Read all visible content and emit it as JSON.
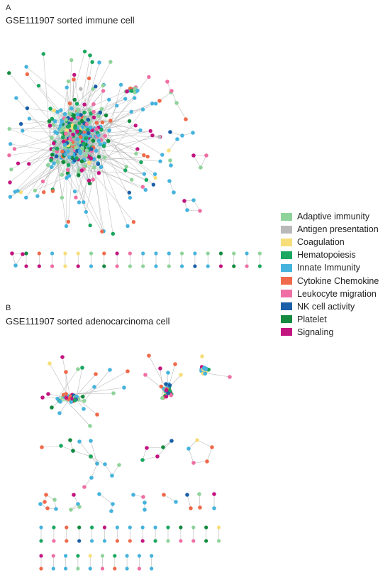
{
  "panels": [
    {
      "letter": "A",
      "title": "GSE111907 sorted immune cell"
    },
    {
      "letter": "B",
      "title": "GSE111907 sorted adenocarcinoma cell"
    }
  ],
  "legend": [
    {
      "label": "Adaptive immunity",
      "color": "#8fd39a"
    },
    {
      "label": "Antigen presentation",
      "color": "#b9b9b9"
    },
    {
      "label": "Coagulation",
      "color": "#f7de7a"
    },
    {
      "label": "Hematopoiesis",
      "color": "#1aa760"
    },
    {
      "label": "Innate Immunity",
      "color": "#45b3dd"
    },
    {
      "label": "Cytokine Chemokine",
      "color": "#ef6a4a"
    },
    {
      "label": "Leukocyte migration",
      "color": "#ef6fa5"
    },
    {
      "label": "NK cell activity",
      "color": "#1a5fa8"
    },
    {
      "label": "Platelet",
      "color": "#138a3e"
    },
    {
      "label": "Signaling",
      "color": "#c2157f"
    }
  ]
}
